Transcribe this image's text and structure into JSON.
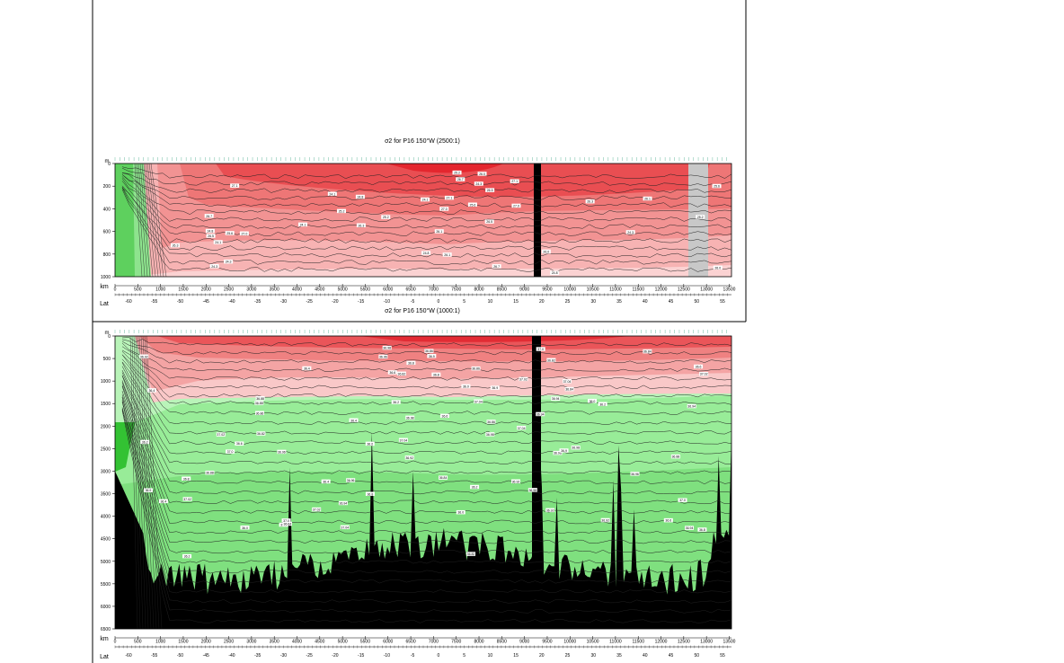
{
  "chart_data": [
    {
      "type": "heatmap",
      "title": "σ2 for P16 150°W (2500:1)",
      "ylabel": "m",
      "xlabel": "km",
      "ylim": [
        1000,
        0
      ],
      "xlim": [
        0,
        13550
      ],
      "yticks": [
        "0",
        "200",
        "400",
        "600",
        "800",
        "1000"
      ],
      "xticks": [
        "0",
        "500",
        "1000",
        "1500",
        "2000",
        "2500",
        "3000",
        "3500",
        "4000",
        "4500",
        "5000",
        "5500",
        "6000",
        "6500",
        "7000",
        "7500",
        "8000",
        "8500",
        "9000",
        "9500",
        "10000",
        "10500",
        "11000",
        "11500",
        "12000",
        "12500",
        "13000",
        "13500"
      ],
      "lat_label": "Lat",
      "lat_ticks": [
        -60,
        -55,
        -50,
        -45,
        -40,
        -35,
        -30,
        -25,
        -20,
        -15,
        -10,
        -5,
        0,
        5,
        10,
        15,
        20,
        25,
        30,
        35,
        40,
        45,
        50,
        55
      ],
      "contour_labels": [
        "24.1",
        "24.3",
        "24.8",
        "25.2",
        "25.6",
        "26.0",
        "26.1",
        "26.3",
        "26.5",
        "26.7",
        "27.0",
        "27.1"
      ],
      "colors": {
        "high": "#e8313a",
        "mid": "#f08080",
        "low": "#f8c0c0",
        "green": "#7ee07e",
        "gap": "#c8c8c8",
        "bottom": "#000000"
      }
    },
    {
      "type": "heatmap",
      "title": "σ2 for P16 150°W (1000:1)",
      "ylabel": "m",
      "xlabel": "km",
      "ylim": [
        6500,
        0
      ],
      "xlim": [
        0,
        13550
      ],
      "yticks": [
        "0",
        "500",
        "1000",
        "1500",
        "2000",
        "2500",
        "3000",
        "3500",
        "4000",
        "4500",
        "5000",
        "5500",
        "6000",
        "6500"
      ],
      "xticks": [
        "0",
        "500",
        "1000",
        "1500",
        "2000",
        "2500",
        "3000",
        "3500",
        "4000",
        "4500",
        "5000",
        "5500",
        "6000",
        "6500",
        "7000",
        "7500",
        "8000",
        "8500",
        "9000",
        "9500",
        "10000",
        "10500",
        "11000",
        "11500",
        "12000",
        "12500",
        "13000",
        "13500"
      ],
      "lat_label": "Lat",
      "lat_ticks": [
        -60,
        -55,
        -50,
        -45,
        -40,
        -35,
        -30,
        -25,
        -20,
        -15,
        -10,
        -5,
        0,
        5,
        10,
        15,
        20,
        25,
        30,
        35,
        40,
        45,
        50,
        55
      ],
      "contour_labels": [
        "36.0",
        "36.2",
        "36.4",
        "36.6",
        "36.8",
        "37.0",
        "37.02",
        "37.04",
        "36.98",
        "36.96",
        "36.94",
        "36.92",
        "36.9",
        "36.88",
        "36.86",
        "36.84",
        "36.82"
      ]
    }
  ]
}
